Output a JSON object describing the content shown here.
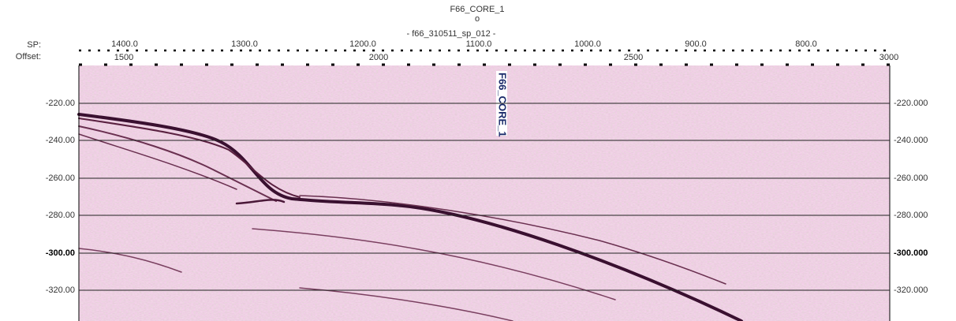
{
  "header": {
    "well": "F66_CORE_1",
    "well_marker": "o",
    "line_name": "- f66_310511_sp_012 -"
  },
  "top_axes": {
    "sp_label": "SP:",
    "sp_ticks": [
      "1400.0",
      "1300.0",
      "1200.0",
      "1100.0",
      "1000.0",
      "900.0",
      "800.0"
    ],
    "offset_label": "Offset:",
    "offset_ticks": [
      "1500",
      "2000",
      "2500",
      "3000"
    ]
  },
  "left_axis": {
    "labels": [
      "-220.00",
      "-240.00",
      "-260.00",
      "-280.00",
      "-300.00",
      "-320.00"
    ]
  },
  "right_axis": {
    "labels": [
      "-220.000",
      "-240.000",
      "-260.000",
      "-280.000",
      "-300.000",
      "-320.000"
    ]
  },
  "well_label": "F66_CORE_1"
}
